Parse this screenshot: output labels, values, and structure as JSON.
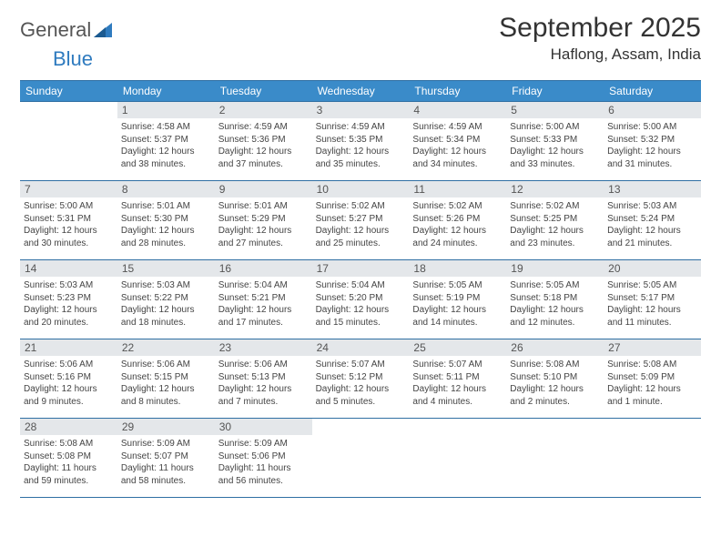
{
  "brand": {
    "word1": "General",
    "word2": "Blue"
  },
  "title": "September 2025",
  "location": "Haflong, Assam, India",
  "colors": {
    "header_bg": "#3a8bc9",
    "header_text": "#ffffff",
    "rule": "#2f6fa3",
    "daynum_bg": "#e4e7ea",
    "body_text": "#444444",
    "brand_gray": "#555555",
    "brand_blue": "#2f7bbf"
  },
  "days_of_week": [
    "Sunday",
    "Monday",
    "Tuesday",
    "Wednesday",
    "Thursday",
    "Friday",
    "Saturday"
  ],
  "weeks": [
    [
      {
        "n": "",
        "lines": []
      },
      {
        "n": "1",
        "lines": [
          "Sunrise: 4:58 AM",
          "Sunset: 5:37 PM",
          "Daylight: 12 hours",
          "and 38 minutes."
        ]
      },
      {
        "n": "2",
        "lines": [
          "Sunrise: 4:59 AM",
          "Sunset: 5:36 PM",
          "Daylight: 12 hours",
          "and 37 minutes."
        ]
      },
      {
        "n": "3",
        "lines": [
          "Sunrise: 4:59 AM",
          "Sunset: 5:35 PM",
          "Daylight: 12 hours",
          "and 35 minutes."
        ]
      },
      {
        "n": "4",
        "lines": [
          "Sunrise: 4:59 AM",
          "Sunset: 5:34 PM",
          "Daylight: 12 hours",
          "and 34 minutes."
        ]
      },
      {
        "n": "5",
        "lines": [
          "Sunrise: 5:00 AM",
          "Sunset: 5:33 PM",
          "Daylight: 12 hours",
          "and 33 minutes."
        ]
      },
      {
        "n": "6",
        "lines": [
          "Sunrise: 5:00 AM",
          "Sunset: 5:32 PM",
          "Daylight: 12 hours",
          "and 31 minutes."
        ]
      }
    ],
    [
      {
        "n": "7",
        "lines": [
          "Sunrise: 5:00 AM",
          "Sunset: 5:31 PM",
          "Daylight: 12 hours",
          "and 30 minutes."
        ]
      },
      {
        "n": "8",
        "lines": [
          "Sunrise: 5:01 AM",
          "Sunset: 5:30 PM",
          "Daylight: 12 hours",
          "and 28 minutes."
        ]
      },
      {
        "n": "9",
        "lines": [
          "Sunrise: 5:01 AM",
          "Sunset: 5:29 PM",
          "Daylight: 12 hours",
          "and 27 minutes."
        ]
      },
      {
        "n": "10",
        "lines": [
          "Sunrise: 5:02 AM",
          "Sunset: 5:27 PM",
          "Daylight: 12 hours",
          "and 25 minutes."
        ]
      },
      {
        "n": "11",
        "lines": [
          "Sunrise: 5:02 AM",
          "Sunset: 5:26 PM",
          "Daylight: 12 hours",
          "and 24 minutes."
        ]
      },
      {
        "n": "12",
        "lines": [
          "Sunrise: 5:02 AM",
          "Sunset: 5:25 PM",
          "Daylight: 12 hours",
          "and 23 minutes."
        ]
      },
      {
        "n": "13",
        "lines": [
          "Sunrise: 5:03 AM",
          "Sunset: 5:24 PM",
          "Daylight: 12 hours",
          "and 21 minutes."
        ]
      }
    ],
    [
      {
        "n": "14",
        "lines": [
          "Sunrise: 5:03 AM",
          "Sunset: 5:23 PM",
          "Daylight: 12 hours",
          "and 20 minutes."
        ]
      },
      {
        "n": "15",
        "lines": [
          "Sunrise: 5:03 AM",
          "Sunset: 5:22 PM",
          "Daylight: 12 hours",
          "and 18 minutes."
        ]
      },
      {
        "n": "16",
        "lines": [
          "Sunrise: 5:04 AM",
          "Sunset: 5:21 PM",
          "Daylight: 12 hours",
          "and 17 minutes."
        ]
      },
      {
        "n": "17",
        "lines": [
          "Sunrise: 5:04 AM",
          "Sunset: 5:20 PM",
          "Daylight: 12 hours",
          "and 15 minutes."
        ]
      },
      {
        "n": "18",
        "lines": [
          "Sunrise: 5:05 AM",
          "Sunset: 5:19 PM",
          "Daylight: 12 hours",
          "and 14 minutes."
        ]
      },
      {
        "n": "19",
        "lines": [
          "Sunrise: 5:05 AM",
          "Sunset: 5:18 PM",
          "Daylight: 12 hours",
          "and 12 minutes."
        ]
      },
      {
        "n": "20",
        "lines": [
          "Sunrise: 5:05 AM",
          "Sunset: 5:17 PM",
          "Daylight: 12 hours",
          "and 11 minutes."
        ]
      }
    ],
    [
      {
        "n": "21",
        "lines": [
          "Sunrise: 5:06 AM",
          "Sunset: 5:16 PM",
          "Daylight: 12 hours",
          "and 9 minutes."
        ]
      },
      {
        "n": "22",
        "lines": [
          "Sunrise: 5:06 AM",
          "Sunset: 5:15 PM",
          "Daylight: 12 hours",
          "and 8 minutes."
        ]
      },
      {
        "n": "23",
        "lines": [
          "Sunrise: 5:06 AM",
          "Sunset: 5:13 PM",
          "Daylight: 12 hours",
          "and 7 minutes."
        ]
      },
      {
        "n": "24",
        "lines": [
          "Sunrise: 5:07 AM",
          "Sunset: 5:12 PM",
          "Daylight: 12 hours",
          "and 5 minutes."
        ]
      },
      {
        "n": "25",
        "lines": [
          "Sunrise: 5:07 AM",
          "Sunset: 5:11 PM",
          "Daylight: 12 hours",
          "and 4 minutes."
        ]
      },
      {
        "n": "26",
        "lines": [
          "Sunrise: 5:08 AM",
          "Sunset: 5:10 PM",
          "Daylight: 12 hours",
          "and 2 minutes."
        ]
      },
      {
        "n": "27",
        "lines": [
          "Sunrise: 5:08 AM",
          "Sunset: 5:09 PM",
          "Daylight: 12 hours",
          "and 1 minute."
        ]
      }
    ],
    [
      {
        "n": "28",
        "lines": [
          "Sunrise: 5:08 AM",
          "Sunset: 5:08 PM",
          "Daylight: 11 hours",
          "and 59 minutes."
        ]
      },
      {
        "n": "29",
        "lines": [
          "Sunrise: 5:09 AM",
          "Sunset: 5:07 PM",
          "Daylight: 11 hours",
          "and 58 minutes."
        ]
      },
      {
        "n": "30",
        "lines": [
          "Sunrise: 5:09 AM",
          "Sunset: 5:06 PM",
          "Daylight: 11 hours",
          "and 56 minutes."
        ]
      },
      {
        "n": "",
        "lines": []
      },
      {
        "n": "",
        "lines": []
      },
      {
        "n": "",
        "lines": []
      },
      {
        "n": "",
        "lines": []
      }
    ]
  ]
}
